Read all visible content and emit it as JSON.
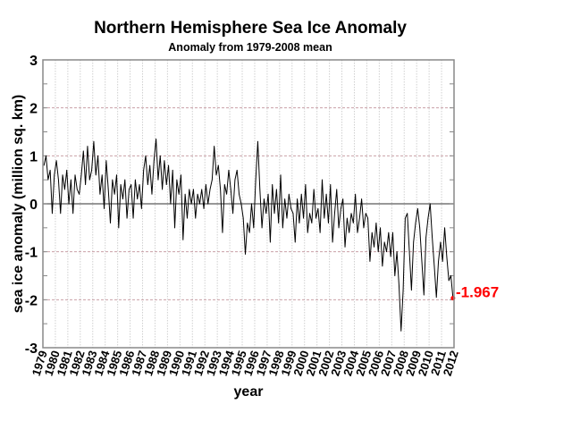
{
  "chart_data": {
    "type": "line",
    "title": "Northern Hemisphere Sea Ice Anomaly",
    "subtitle": "Anomaly from 1979-2008 mean",
    "xlabel": "year",
    "ylabel": "sea ice anomaly (million sq. km)",
    "xlim": [
      1979,
      2012
    ],
    "ylim": [
      -3,
      3
    ],
    "yticks": [
      "3",
      "2",
      "1",
      "0",
      "-1",
      "-2",
      "-3"
    ],
    "xticks": [
      "1979",
      "1980",
      "1981",
      "1982",
      "1983",
      "1984",
      "1985",
      "1986",
      "1987",
      "1988",
      "1989",
      "1990",
      "1991",
      "1992",
      "1993",
      "1994",
      "1995",
      "1996",
      "1997",
      "1998",
      "1999",
      "2000",
      "2001",
      "2002",
      "2003",
      "2004",
      "2005",
      "2006",
      "2007",
      "2008",
      "2009",
      "2010",
      "2011",
      "2012"
    ],
    "grid": true,
    "line_color": "#000000",
    "highlight_color": "#ff0000",
    "last_value_label": "-1.967",
    "series_start_year": 1979,
    "points_per_year": 6,
    "values": [
      0.8,
      1.0,
      0.5,
      0.7,
      -0.2,
      0.6,
      0.9,
      0.5,
      -0.2,
      0.6,
      0.3,
      0.7,
      0.0,
      0.5,
      -0.2,
      0.6,
      0.3,
      0.2,
      0.6,
      1.1,
      0.4,
      1.2,
      0.5,
      0.7,
      1.3,
      0.6,
      1.0,
      0.2,
      0.6,
      -0.1,
      0.9,
      0.3,
      -0.4,
      0.5,
      0.2,
      0.6,
      -0.5,
      0.4,
      0.1,
      0.5,
      -0.3,
      0.3,
      0.4,
      -0.3,
      0.5,
      0.1,
      0.4,
      -0.1,
      0.7,
      1.0,
      0.4,
      0.8,
      0.2,
      0.9,
      1.35,
      0.5,
      1.0,
      0.3,
      0.9,
      0.4,
      0.8,
      0.0,
      0.7,
      -0.5,
      0.5,
      0.2,
      0.6,
      -0.75,
      0.2,
      -0.3,
      0.3,
      0.0,
      0.3,
      -0.3,
      0.2,
      0.0,
      0.3,
      -0.1,
      0.4,
      0.0,
      0.3,
      0.5,
      1.2,
      0.6,
      0.8,
      0.3,
      -0.6,
      0.4,
      0.2,
      0.7,
      0.3,
      -0.2,
      0.5,
      0.7,
      0.2,
      0.0,
      -0.3,
      -1.05,
      -0.4,
      -0.6,
      0.0,
      -0.5,
      0.5,
      1.3,
      0.3,
      -0.5,
      0.1,
      -0.2,
      0.2,
      -0.8,
      0.4,
      -0.2,
      0.3,
      -0.4,
      0.6,
      -0.5,
      0.1,
      -0.3,
      0.2,
      -0.1,
      -0.2,
      -0.8,
      0.1,
      -0.4,
      0.2,
      -0.3,
      0.4,
      -0.6,
      -0.2,
      -0.4,
      0.3,
      -0.3,
      -0.1,
      -0.6,
      0.5,
      -0.3,
      0.2,
      -0.4,
      0.4,
      -0.8,
      -0.2,
      0.3,
      -0.5,
      -0.1,
      0.1,
      -0.9,
      -0.3,
      -0.6,
      -0.2,
      -0.4,
      0.2,
      -0.6,
      -0.3,
      0.1,
      -0.5,
      -0.2,
      -0.3,
      -1.2,
      -0.6,
      -0.9,
      -0.4,
      -1.0,
      -0.5,
      -1.3,
      -0.8,
      -1.0,
      -0.6,
      -1.1,
      -0.6,
      -1.5,
      -1.0,
      -1.7,
      -2.65,
      -1.8,
      -0.3,
      -0.2,
      -1.0,
      -1.8,
      -0.8,
      -0.4,
      -0.1,
      -0.5,
      -1.2,
      -1.9,
      -0.7,
      -0.3,
      0.0,
      -0.7,
      -1.3,
      -1.95,
      -1.2,
      -0.8,
      -1.2,
      -0.5,
      -1.1,
      -1.6,
      -1.5,
      -1.967
    ]
  }
}
